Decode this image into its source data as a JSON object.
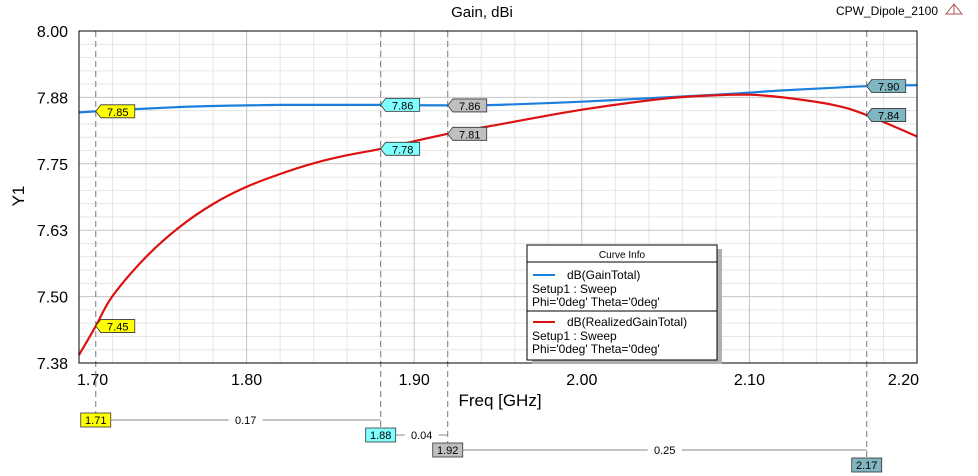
{
  "chart_data": {
    "type": "line",
    "title": "Gain, dBi",
    "design_name": "CPW_Dipole_2100",
    "xlabel": "Freq [GHz]",
    "ylabel": "Y1",
    "xlim": [
      1.7,
      2.2
    ],
    "ylim": [
      7.38,
      8.0
    ],
    "x_ticks": [
      "1.70",
      "1.80",
      "1.90",
      "2.00",
      "2.10",
      "2.20"
    ],
    "y_ticks": [
      "7.38",
      "7.50",
      "7.63",
      "7.75",
      "7.88",
      "8.00"
    ],
    "grid": true,
    "x": [
      1.7,
      1.71,
      1.72,
      1.74,
      1.76,
      1.78,
      1.8,
      1.82,
      1.84,
      1.86,
      1.88,
      1.92,
      1.95,
      2.0,
      2.05,
      2.08,
      2.1,
      2.12,
      2.15,
      2.17,
      2.2
    ],
    "series": [
      {
        "name": "dB(GainTotal)",
        "setup": "Setup1 : Sweep",
        "variables": "Phi='0deg' Theta='0deg'",
        "color": "#1b7fdd",
        "values": [
          7.848,
          7.85,
          7.852,
          7.855,
          7.858,
          7.86,
          7.861,
          7.862,
          7.862,
          7.862,
          7.862,
          7.861,
          7.862,
          7.868,
          7.876,
          7.881,
          7.885,
          7.889,
          7.894,
          7.897,
          7.899
        ]
      },
      {
        "name": "dB(RealizedGainTotal)",
        "setup": "Setup1 : Sweep",
        "variables": "Phi='0deg' Theta='0deg'",
        "color": "#dd1111",
        "values": [
          7.395,
          7.449,
          7.505,
          7.578,
          7.634,
          7.677,
          7.709,
          7.733,
          7.753,
          7.768,
          7.78,
          7.808,
          7.825,
          7.853,
          7.874,
          7.88,
          7.881,
          7.876,
          7.862,
          7.843,
          7.803
        ]
      }
    ],
    "markers": [
      {
        "id": "m1",
        "x": 1.71,
        "x_label": "1.71",
        "color": "#ffff00",
        "labels": [
          {
            "series": 1,
            "text": "7.45",
            "y": 7.449
          },
          {
            "series": 0,
            "text": "7.85",
            "y": 7.85
          }
        ]
      },
      {
        "id": "m2",
        "x": 1.88,
        "x_label": "1.88",
        "color": "#80ffff",
        "labels": [
          {
            "series": 1,
            "text": "7.78",
            "y": 7.78
          },
          {
            "series": 0,
            "text": "7.86",
            "y": 7.862
          }
        ]
      },
      {
        "id": "m3",
        "x": 1.92,
        "x_label": "1.92",
        "color": "#c0c0c0",
        "labels": [
          {
            "series": 1,
            "text": "7.81",
            "y": 7.808
          },
          {
            "series": 0,
            "text": "7.86",
            "y": 7.861
          }
        ]
      },
      {
        "id": "m4",
        "x": 2.17,
        "x_label": "2.17",
        "color": "#7fb6c2",
        "labels": [
          {
            "series": 0,
            "text": "7.90",
            "y": 7.897
          },
          {
            "series": 1,
            "text": "7.84",
            "y": 7.843
          }
        ]
      }
    ],
    "deltas": [
      {
        "from": 0,
        "to": 1,
        "text": "0.17"
      },
      {
        "from": 1,
        "to": 2,
        "text": "0.04"
      },
      {
        "from": 2,
        "to": 3,
        "text": "0.25"
      }
    ],
    "legend": {
      "title": "Curve Info",
      "position": "bottom-center"
    }
  }
}
